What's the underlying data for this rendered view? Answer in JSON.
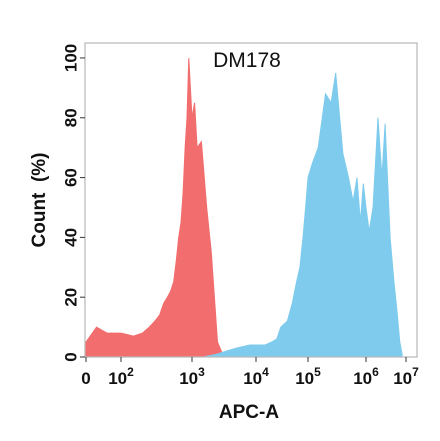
{
  "chart_data": {
    "type": "area",
    "title": "DM178",
    "xlabel": "APC-A",
    "ylabel": "Count  (%)",
    "xscale": "biexponential-log",
    "xlim": [
      0,
      10000000
    ],
    "ylim": [
      0,
      105
    ],
    "grid": false,
    "legend": "none",
    "y_ticks": [
      "0",
      "20",
      "40",
      "60",
      "80",
      "100"
    ],
    "x_ticks": [
      {
        "base": "0",
        "exp": ""
      },
      {
        "base": "10",
        "exp": "2"
      },
      {
        "base": "10",
        "exp": "3"
      },
      {
        "base": "10",
        "exp": "4"
      },
      {
        "base": "10",
        "exp": "5"
      },
      {
        "base": "10",
        "exp": "6"
      },
      {
        "base": "10",
        "exp": "7"
      }
    ],
    "series": [
      {
        "color": "#f26d6d",
        "x": [
          0,
          30,
          60,
          100,
          150,
          200,
          250,
          300,
          350,
          400,
          450,
          500,
          550,
          600,
          650,
          700,
          750,
          800,
          850,
          900,
          1000,
          1100,
          1200,
          1400,
          1700,
          2000,
          2500,
          3000,
          3500,
          4000
        ],
        "y": [
          5,
          10,
          8,
          8,
          7,
          8,
          10,
          12,
          14,
          18,
          20,
          22,
          25,
          32,
          40,
          45,
          55,
          70,
          80,
          100,
          80,
          85,
          70,
          72,
          50,
          35,
          5,
          1,
          0,
          0
        ]
      },
      {
        "color": "#7ecbee",
        "x": [
          1500,
          2500,
          3500,
          5000,
          8000,
          10000,
          15000,
          20000,
          25000,
          30000,
          40000,
          50000,
          60000,
          70000,
          80000,
          90000,
          100000,
          120000,
          150000,
          200000,
          250000,
          300000,
          400000,
          500000,
          600000,
          700000,
          800000,
          900000,
          1000000,
          1200000,
          1500000,
          2000000,
          2500000,
          3000000,
          4000000,
          5000000,
          6000000,
          7000000,
          8000000
        ],
        "y": [
          0,
          1,
          2,
          3,
          4,
          4,
          4,
          5,
          6,
          10,
          12,
          18,
          25,
          30,
          40,
          50,
          60,
          65,
          70,
          88,
          85,
          95,
          68,
          60,
          52,
          60,
          45,
          58,
          50,
          42,
          50,
          80,
          60,
          78,
          40,
          25,
          15,
          5,
          1
        ]
      }
    ]
  }
}
